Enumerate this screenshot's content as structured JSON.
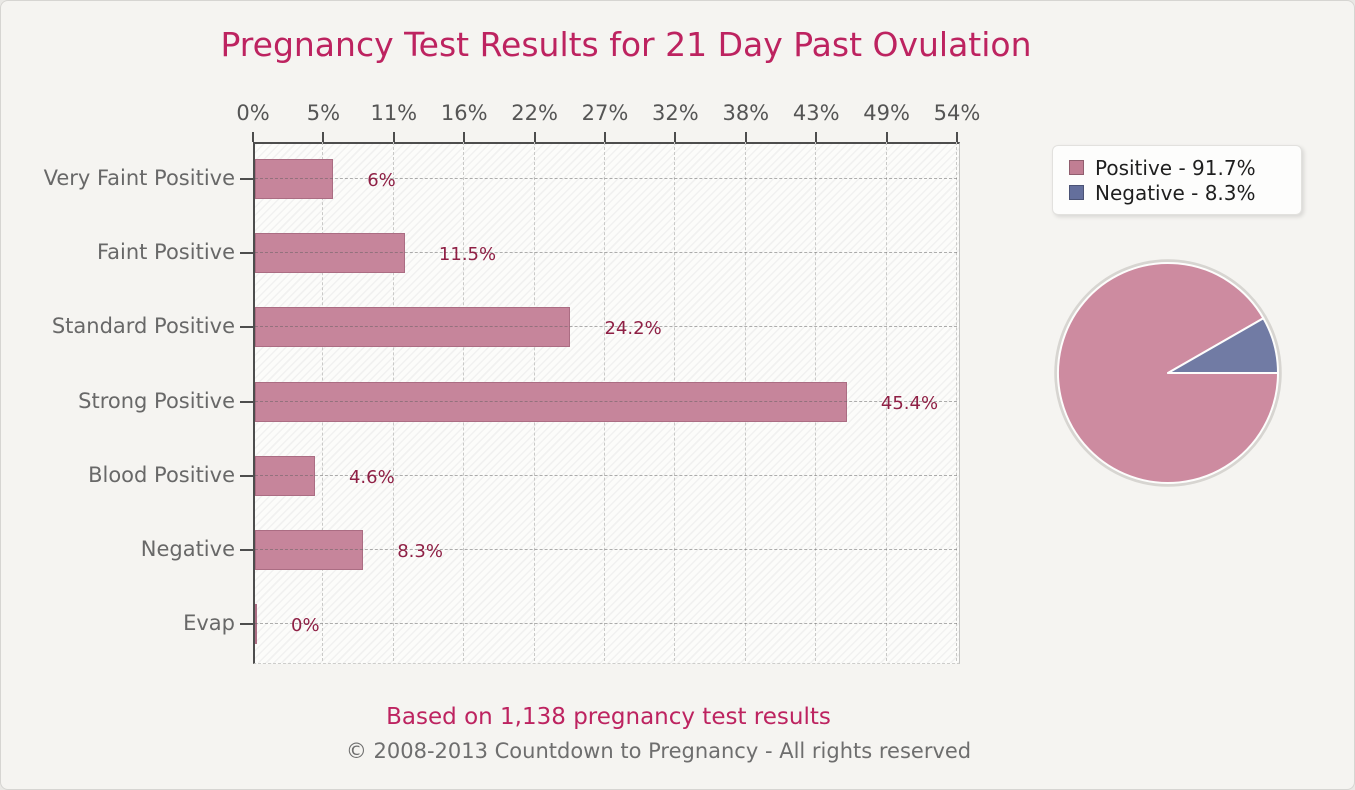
{
  "title": "Pregnancy Test Results for 21 Day Past Ovulation",
  "colors": {
    "accent": "#bd2360",
    "bar_fill": "#c6859b",
    "value_label": "#8f2045",
    "pie_positive": "#cd8ba0",
    "pie_negative": "#717ba4",
    "legend_positive_swatch": "#c17e93",
    "legend_negative_swatch": "#646f9c"
  },
  "chart_data": [
    {
      "type": "bar",
      "orientation": "horizontal",
      "title": "Pregnancy Test Results for 21 Day Past Ovulation",
      "categories": [
        "Very Faint Positive",
        "Faint Positive",
        "Standard Positive",
        "Strong Positive",
        "Blood Positive",
        "Negative",
        "Evap"
      ],
      "values": [
        6,
        11.5,
        24.2,
        45.4,
        4.6,
        8.3,
        0
      ],
      "value_labels": [
        "6%",
        "11.5%",
        "24.2%",
        "45.4%",
        "4.6%",
        "8.3%",
        "0%"
      ],
      "x_tick_labels": [
        "0%",
        "5%",
        "11%",
        "16%",
        "22%",
        "27%",
        "32%",
        "38%",
        "43%",
        "49%",
        "54%"
      ],
      "xlim": [
        0,
        54
      ],
      "grid": true,
      "xlabel": "",
      "ylabel": ""
    },
    {
      "type": "pie",
      "labels": [
        "Positive",
        "Negative"
      ],
      "values": [
        91.7,
        8.3
      ],
      "legend_entries": [
        "Positive - 91.7%",
        "Negative - 8.3%"
      ],
      "legend_position": "top-right",
      "start_angle_deg": 0,
      "direction": "clockwise-from-east"
    }
  ],
  "legend": {
    "items": [
      {
        "label": "Positive - 91.7%"
      },
      {
        "label": "Negative - 8.3%"
      }
    ]
  },
  "footer": {
    "note": "Based on 1,138 pregnancy test results",
    "copyright": "© 2008-2013 Countdown to Pregnancy - All rights reserved"
  }
}
